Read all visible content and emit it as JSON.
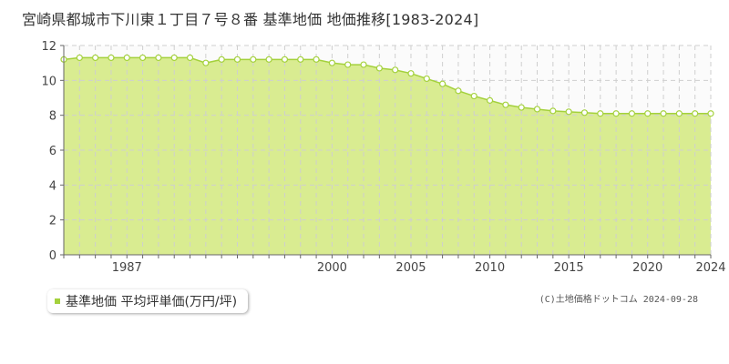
{
  "title": "宮崎県都城市下川東１丁目７号８番 基準地価 地価推移[1983-2024]",
  "legend": {
    "label": "基準地価 平均坪単価(万円/坪)"
  },
  "credit": "(C)土地価格ドットコム 2024-09-28",
  "colors": {
    "fill": "#d9ec91",
    "line": "#a4d13c",
    "grid": "#cfcfcf",
    "axis": "#666666"
  },
  "chart_data": {
    "type": "area",
    "x": [
      1983,
      1984,
      1985,
      1986,
      1987,
      1988,
      1989,
      1990,
      1991,
      1992,
      1993,
      1994,
      1995,
      1996,
      1997,
      1998,
      1999,
      2000,
      2001,
      2002,
      2003,
      2004,
      2005,
      2006,
      2007,
      2008,
      2009,
      2010,
      2011,
      2012,
      2013,
      2014,
      2015,
      2016,
      2017,
      2018,
      2019,
      2020,
      2021,
      2022,
      2023,
      2024
    ],
    "series": [
      {
        "name": "基準地価 平均坪単価(万円/坪)",
        "values": [
          11.2,
          11.3,
          11.3,
          11.3,
          11.3,
          11.3,
          11.3,
          11.3,
          11.3,
          11.0,
          11.2,
          11.2,
          11.2,
          11.2,
          11.2,
          11.2,
          11.2,
          11.0,
          10.9,
          10.9,
          10.7,
          10.6,
          10.4,
          10.1,
          9.8,
          9.4,
          9.1,
          8.85,
          8.6,
          8.45,
          8.35,
          8.25,
          8.2,
          8.15,
          8.1,
          8.1,
          8.1,
          8.1,
          8.1,
          8.1,
          8.1,
          8.1
        ]
      }
    ],
    "y_ticks": [
      0,
      2,
      4,
      6,
      8,
      10,
      12
    ],
    "x_tick_labels": [
      "1987",
      "2000",
      "2005",
      "2010",
      "2015",
      "2020",
      "2024"
    ],
    "x_tick_years": [
      1987,
      2000,
      2005,
      2010,
      2015,
      2020,
      2024
    ],
    "ylim": [
      0,
      12
    ],
    "xlim": [
      1983,
      2024
    ],
    "grid": true
  }
}
